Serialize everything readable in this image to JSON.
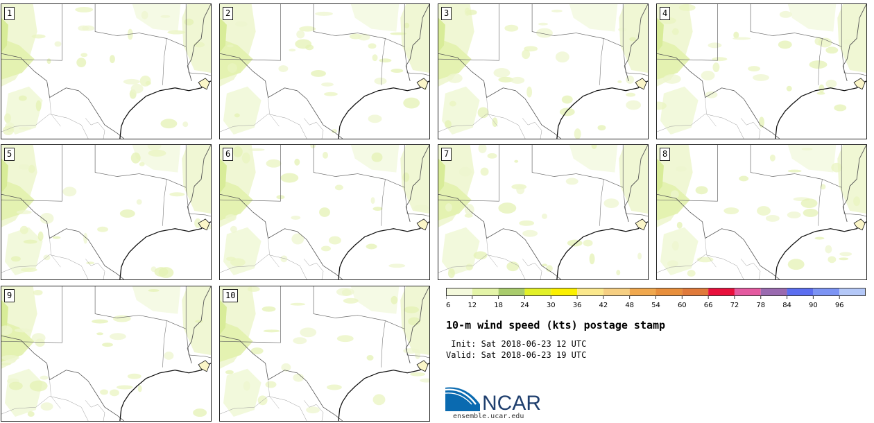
{
  "members": [
    "1",
    "2",
    "3",
    "4",
    "5",
    "6",
    "7",
    "8",
    "9",
    "10"
  ],
  "title": "10-m wind speed (kts) postage stamp",
  "init": {
    "label": "Init:",
    "value": "Sat 2018-06-23 12 UTC"
  },
  "valid": {
    "label": "Valid:",
    "value": "Sat 2018-06-23 19 UTC"
  },
  "logo": {
    "text": "NCAR",
    "site": "ensemble.ucar.edu"
  },
  "colorbar": {
    "ticks": [
      "6",
      "12",
      "18",
      "24",
      "30",
      "36",
      "42",
      "48",
      "54",
      "60",
      "66",
      "72",
      "78",
      "84",
      "90",
      "96"
    ],
    "colors": [
      "#f4f9dc",
      "#e4f4a8",
      "#a9cc6c",
      "#e2f028",
      "#fbf000",
      "#fbe88c",
      "#f6cf82",
      "#f0a84e",
      "#e88f3c",
      "#e07a3a",
      "#e8103c",
      "#e45aa0",
      "#9a6ab0",
      "#5c6ef0",
      "#7c94f4",
      "#b4c8f8"
    ]
  }
}
